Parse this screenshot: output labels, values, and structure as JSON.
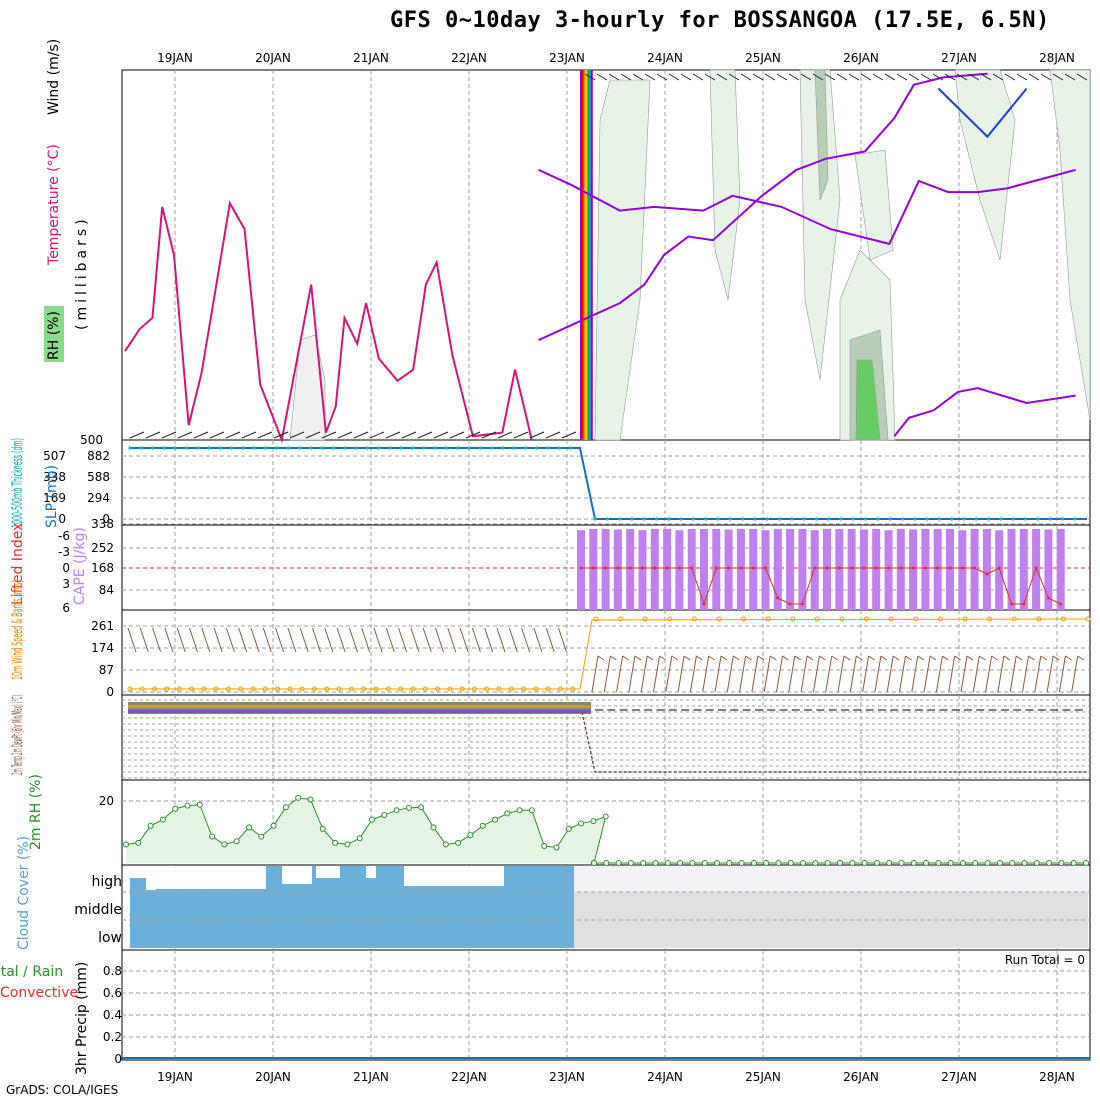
{
  "title": "GFS 0~10day 3-hourly for BOSSANGOA (17.5E, 6.5N)",
  "credit": "GrADS: COLA/IGES",
  "days": [
    "19JAN",
    "20JAN",
    "21JAN",
    "22JAN",
    "23JAN",
    "24JAN",
    "25JAN",
    "26JAN",
    "27JAN",
    "28JAN"
  ],
  "colors": {
    "grid": "#a0a0a0",
    "temperature": "#d4147a",
    "thickness_line": "#9400d3",
    "slp": "#1a6fb4",
    "cape": "#c080f0",
    "lifted_index": "#e03030",
    "wind_speed": "#f0a000",
    "barbs": "#8b5a3c",
    "rh2m": "#2a8f2a",
    "rh2m_fill": "#e6f4e6",
    "cloud_low": "#6ab0d8",
    "cloud_panel": "#e0e0e0",
    "rh_fill_light": "#e6f3e6",
    "rh_fill_mid": "#b8ceb8",
    "rh_fill_high": "#66cc66"
  },
  "chart_data": [
    {
      "panel": "profile",
      "type": "line",
      "ylabels": [
        {
          "text": "Wind (m/s)",
          "color": "#000000"
        },
        {
          "text": "Temperature (°C)",
          "color": "multicolor"
        },
        {
          "text": "(millibars)",
          "color": "#000000"
        },
        {
          "text": "RH (%)",
          "color": "#000000"
        }
      ],
      "ytick_bottom": "500",
      "temperature_series": [
        {
          "x": 0,
          "y": 0.76
        },
        {
          "x": 0.15,
          "y": 0.7
        },
        {
          "x": 0.28,
          "y": 0.67
        },
        {
          "x": 0.38,
          "y": 0.37
        },
        {
          "x": 0.5,
          "y": 0.5
        },
        {
          "x": 0.65,
          "y": 0.96
        },
        {
          "x": 0.78,
          "y": 0.82
        },
        {
          "x": 0.92,
          "y": 0.6
        },
        {
          "x": 1.07,
          "y": 0.36
        },
        {
          "x": 1.22,
          "y": 0.43
        },
        {
          "x": 1.38,
          "y": 0.85
        },
        {
          "x": 1.6,
          "y": 1.0
        },
        {
          "x": 1.7,
          "y": 0.86
        },
        {
          "x": 1.9,
          "y": 0.58
        },
        {
          "x": 2.05,
          "y": 0.98
        },
        {
          "x": 2.15,
          "y": 0.91
        },
        {
          "x": 2.24,
          "y": 0.67
        },
        {
          "x": 2.37,
          "y": 0.74
        },
        {
          "x": 2.46,
          "y": 0.63
        },
        {
          "x": 2.59,
          "y": 0.78
        },
        {
          "x": 2.78,
          "y": 0.84
        },
        {
          "x": 2.94,
          "y": 0.81
        },
        {
          "x": 3.07,
          "y": 0.58
        },
        {
          "x": 3.18,
          "y": 0.52
        },
        {
          "x": 3.34,
          "y": 0.77
        },
        {
          "x": 3.55,
          "y": 0.99
        },
        {
          "x": 3.85,
          "y": 0.98
        },
        {
          "x": 3.98,
          "y": 0.81
        },
        {
          "x": 4.08,
          "y": 0.92
        },
        {
          "x": 4.15,
          "y": 1.0
        }
      ],
      "thickness_lines": [
        [
          {
            "x": 4.22,
            "y": 0.73
          },
          {
            "x": 4.55,
            "y": 0.69
          },
          {
            "x": 5.05,
            "y": 0.63
          },
          {
            "x": 5.3,
            "y": 0.58
          },
          {
            "x": 5.5,
            "y": 0.5
          },
          {
            "x": 5.75,
            "y": 0.45
          },
          {
            "x": 6.0,
            "y": 0.46
          },
          {
            "x": 6.5,
            "y": 0.34
          },
          {
            "x": 6.85,
            "y": 0.27
          },
          {
            "x": 7.15,
            "y": 0.24
          },
          {
            "x": 7.55,
            "y": 0.22
          },
          {
            "x": 7.85,
            "y": 0.13
          },
          {
            "x": 8.05,
            "y": 0.04
          },
          {
            "x": 8.35,
            "y": 0.02
          },
          {
            "x": 8.8,
            "y": 0.01
          }
        ],
        [
          {
            "x": 4.22,
            "y": 0.27
          },
          {
            "x": 4.55,
            "y": 0.31
          },
          {
            "x": 5.05,
            "y": 0.38
          },
          {
            "x": 5.4,
            "y": 0.37
          },
          {
            "x": 5.9,
            "y": 0.38
          },
          {
            "x": 6.2,
            "y": 0.34
          },
          {
            "x": 6.7,
            "y": 0.37
          },
          {
            "x": 7.2,
            "y": 0.43
          },
          {
            "x": 7.8,
            "y": 0.47
          },
          {
            "x": 8.1,
            "y": 0.3
          },
          {
            "x": 8.4,
            "y": 0.33
          },
          {
            "x": 8.7,
            "y": 0.33
          },
          {
            "x": 9.0,
            "y": 0.32
          },
          {
            "x": 9.7,
            "y": 0.27
          }
        ],
        [
          {
            "x": 7.85,
            "y": 0.99
          },
          {
            "x": 8.0,
            "y": 0.94
          },
          {
            "x": 8.25,
            "y": 0.92
          },
          {
            "x": 8.5,
            "y": 0.87
          },
          {
            "x": 8.7,
            "y": 0.86
          },
          {
            "x": 9.2,
            "y": 0.9
          },
          {
            "x": 9.7,
            "y": 0.88
          }
        ],
        [
          {
            "x": 8.3,
            "y": 0.05
          },
          {
            "x": 8.8,
            "y": 0.18
          },
          {
            "x": 9.2,
            "y": 0.05
          }
        ]
      ]
    },
    {
      "panel": "slp_thickness",
      "type": "line",
      "ylabel_left": "1000-500mb Thickness (dm)",
      "ylabel_right": "SLP (mb)",
      "left_ticks": [
        "507",
        "338",
        "169",
        "0"
      ],
      "right_ticks": [
        "882",
        "588",
        "294",
        "0"
      ],
      "slp_values": {
        "before_23JAN": 990,
        "after_23JAN": 0
      }
    },
    {
      "panel": "cape_li",
      "type": "bar",
      "ylabel_left": "Lifted Index",
      "ylabel_right": "CAPE (J/kg)",
      "left_ticks": [
        "-6",
        "-3",
        "0",
        "3",
        "6"
      ],
      "right_ticks": [
        "338",
        "252",
        "168",
        "84"
      ],
      "cape_values": [
        325,
        330,
        330,
        328,
        330,
        325,
        330,
        330,
        325,
        330,
        330,
        330,
        328,
        330,
        330,
        325,
        330,
        330,
        330,
        325,
        330,
        330,
        330,
        328,
        330,
        325,
        330,
        328,
        330,
        330,
        330,
        325,
        330,
        330,
        325,
        330,
        330,
        330,
        328,
        330
      ],
      "lifted_index_values": [
        0,
        0,
        0,
        0,
        0,
        0,
        0,
        0,
        0,
        0,
        6,
        0,
        0,
        0,
        0,
        0,
        5,
        6,
        6,
        0,
        0,
        0,
        0,
        0,
        0,
        0,
        0,
        0,
        0,
        0,
        0,
        0,
        0,
        1,
        0,
        6,
        6,
        0,
        5,
        6
      ]
    },
    {
      "panel": "wind10m",
      "type": "line",
      "ylabel": "10m Wind Speed & Barbs (m/s)",
      "ticks": [
        "261",
        "174",
        "87",
        "0"
      ],
      "speed_before": 0,
      "speed_after": 258
    },
    {
      "panel": "temp2m",
      "type": "line",
      "ylabel": "2m Temp 2m DewPt (6hr Min/Max) (°C)"
    },
    {
      "panel": "rh2m",
      "type": "area",
      "ylabel": "2m RH (%)",
      "ticks": [
        "20"
      ],
      "values": [
        6,
        6.5,
        12,
        14,
        17.5,
        18.5,
        18.8,
        8.5,
        6,
        7,
        11.5,
        8.5,
        12,
        18,
        21,
        20.5,
        11,
        6.5,
        6,
        8,
        14,
        15.5,
        17,
        17.8,
        18,
        11.5,
        6,
        6.5,
        9,
        12,
        14,
        16,
        17,
        17,
        5.5,
        5,
        11,
        12.8,
        13.5,
        15
      ]
    },
    {
      "panel": "cloud",
      "type": "bar",
      "ylabel": "Cloud Cover (%)",
      "levels": [
        "high",
        "middle",
        "low"
      ]
    },
    {
      "panel": "precip",
      "type": "line",
      "ylabel_main": "3hr Precip (mm)",
      "ylabel_a": "Total / Rain",
      "ylabel_b": "Convective",
      "ticks": [
        "0.8",
        "0.6",
        "0.4",
        "0.2",
        "0"
      ],
      "run_total_label": "Run Total = 0"
    }
  ]
}
